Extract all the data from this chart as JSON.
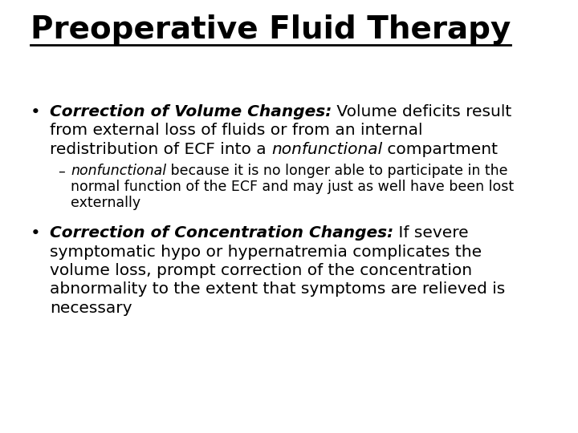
{
  "title": "Preoperative Fluid Therapy",
  "background_color": "#ffffff",
  "text_color": "#000000",
  "title_fontsize": 28,
  "body_fontsize": 14.5,
  "sub_fontsize": 12.5,
  "bullet1_bi": "Correction of Volume Changes:",
  "bullet1_rest_line1": " Volume deficits result",
  "bullet1_line2": "from external loss of fluids or from an internal",
  "bullet1_line3_pre": "redistribution of ECF into a ",
  "bullet1_line3_italic": "nonfunctional",
  "bullet1_line3_post": " compartment",
  "sub_dash": "–",
  "sub_italic": "nonfunctional",
  "sub_line1_rest": " because it is no longer able to participate in the",
  "sub_line2": "normal function of the ECF and may just as well have been lost",
  "sub_line3": "externally",
  "bullet2_bi": "Correction of Concentration Changes:",
  "bullet2_rest_line1": " If severe",
  "bullet2_line2": "symptomatic hypo or hypernatremia complicates the",
  "bullet2_line3": "volume loss, prompt correction of the concentration",
  "bullet2_line4": "abnormality to the extent that symptoms are relieved is",
  "bullet2_line5": "necessary"
}
